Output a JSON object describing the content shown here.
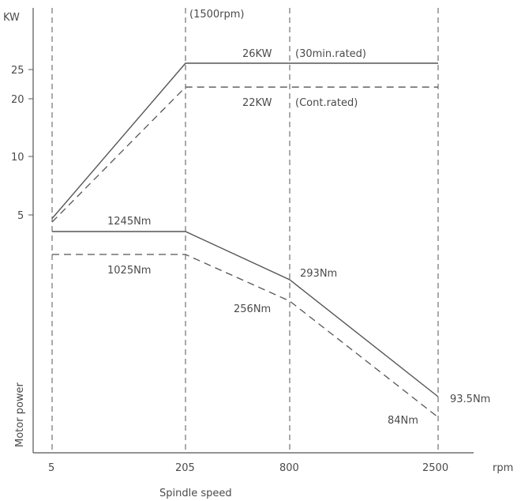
{
  "chart_data": {
    "type": "line",
    "y_unit_label": "KW",
    "x_unit_label": "rpm",
    "xlabel": "Spindle speed",
    "ylabel": "Motor power",
    "x_ticks": [
      "5",
      "205",
      "800",
      "2500"
    ],
    "y_ticks": [
      "25",
      "20",
      "10",
      "5"
    ],
    "top_annotation": "(1500rpm)",
    "power_series": [
      {
        "style": "solid",
        "value_label": "26KW",
        "rating_label": "(30min.rated)",
        "points": [
          [
            5,
            4.2
          ],
          [
            205,
            26
          ],
          [
            800,
            26
          ],
          [
            2500,
            26
          ]
        ]
      },
      {
        "style": "dashed",
        "value_label": "22KW",
        "rating_label": "(Cont.rated)",
        "points": [
          [
            5,
            3.4
          ],
          [
            205,
            22
          ],
          [
            800,
            22
          ],
          [
            2500,
            22
          ]
        ]
      }
    ],
    "torque_series": [
      {
        "style": "solid",
        "points": [
          [
            5,
            1245
          ],
          [
            205,
            1245
          ],
          [
            800,
            293
          ],
          [
            2500,
            93.5
          ]
        ],
        "labels": [
          "1245Nm",
          "293Nm",
          "93.5Nm"
        ]
      },
      {
        "style": "dashed",
        "points": [
          [
            5,
            1025
          ],
          [
            205,
            1025
          ],
          [
            800,
            256
          ],
          [
            2500,
            84
          ]
        ],
        "labels": [
          "1025Nm",
          "256Nm",
          "84Nm"
        ]
      }
    ],
    "grid": false
  }
}
